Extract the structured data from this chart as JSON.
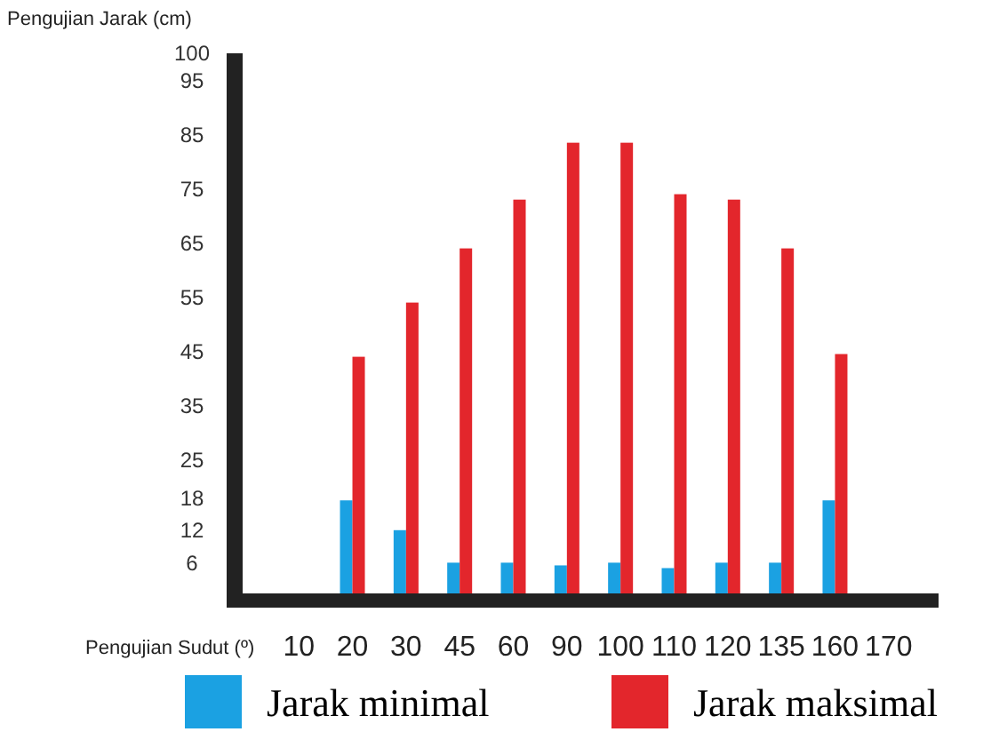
{
  "chart_data": {
    "type": "bar",
    "ylabel": "Pengujian Jarak (cm)",
    "xlabel": "Pengujian Sudut (º)",
    "categories": [
      "10",
      "20",
      "30",
      "45",
      "60",
      "90",
      "100",
      "110",
      "120",
      "135",
      "160",
      "170"
    ],
    "series": [
      {
        "name": "Jarak minimal",
        "color": "#1ba1e2",
        "values": [
          null,
          17.5,
          12,
          6,
          6,
          5.5,
          6,
          5,
          6,
          6,
          17.5,
          null
        ]
      },
      {
        "name": "Jarak maksimal",
        "color": "#e3262c",
        "values": [
          null,
          44,
          54,
          64,
          73,
          83.5,
          83.5,
          74,
          73,
          64,
          44.5,
          null
        ]
      }
    ],
    "ylim": [
      0,
      100
    ],
    "yticks": [
      6,
      12,
      18,
      25,
      35,
      45,
      55,
      65,
      75,
      85,
      95,
      100
    ],
    "legend": "bottom",
    "grid": false
  }
}
